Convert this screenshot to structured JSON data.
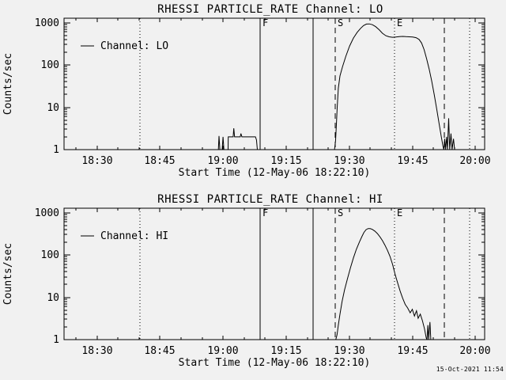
{
  "page": {
    "background": "#f1f1f1",
    "foreground": "#000000"
  },
  "footer": {
    "timestamp": "15-Oct-2021 11:54"
  },
  "chart_data": [
    {
      "id": "lo",
      "type": "line",
      "title": "RHESSI PARTICLE_RATE Channel: LO",
      "xlabel": "Start Time (12-May-06 18:22:10)",
      "ylabel": "Counts/sec",
      "legend": {
        "label": "Channel: LO",
        "position": "top-left"
      },
      "x_axis": {
        "unit": "minutes after 18:22:10",
        "range": [
          0,
          100
        ],
        "major_ticks": [
          {
            "t": 7.833,
            "label": "18:30"
          },
          {
            "t": 22.833,
            "label": "18:45"
          },
          {
            "t": 37.833,
            "label": "19:00"
          },
          {
            "t": 52.833,
            "label": "19:15"
          },
          {
            "t": 67.833,
            "label": "19:30"
          },
          {
            "t": 82.833,
            "label": "19:45"
          },
          {
            "t": 97.833,
            "label": "20:00"
          }
        ],
        "minor_ticks": [
          2.833,
          12.833,
          17.833,
          27.833,
          32.833,
          42.833,
          47.833,
          57.833,
          62.833,
          72.833,
          77.833,
          87.833,
          92.833
        ]
      },
      "y_axis": {
        "scale": "log",
        "range": [
          1,
          1270
        ],
        "major_ticks": [
          {
            "v": 1,
            "label": "1"
          },
          {
            "v": 10,
            "label": "10"
          },
          {
            "v": 100,
            "label": "100"
          },
          {
            "v": 1000,
            "label": "1000"
          }
        ],
        "minor_ticks": [
          2,
          3,
          4,
          5,
          6,
          7,
          8,
          9,
          20,
          30,
          40,
          50,
          60,
          70,
          80,
          90,
          200,
          300,
          400,
          500,
          600,
          700,
          800,
          900
        ]
      },
      "markers": [
        {
          "t": 18.0,
          "style": "dotted",
          "label": ""
        },
        {
          "t": 46.6,
          "style": "solid",
          "label": "F"
        },
        {
          "t": 59.2,
          "style": "solid",
          "label": ""
        },
        {
          "t": 64.4,
          "style": "dashed",
          "label": "S"
        },
        {
          "t": 78.6,
          "style": "dotted",
          "label": "E"
        },
        {
          "t": 90.4,
          "style": "dashed",
          "label": ""
        },
        {
          "t": 96.5,
          "style": "dotted",
          "label": ""
        }
      ],
      "series": [
        {
          "name": "Channel: LO",
          "points": [
            [
              0,
              1
            ],
            [
              36.5,
              1
            ],
            [
              36.7,
              1
            ],
            [
              36.85,
              2.1
            ],
            [
              37.05,
              1
            ],
            [
              37.6,
              1
            ],
            [
              37.8,
              2.0
            ],
            [
              38.0,
              1
            ],
            [
              39.0,
              1
            ],
            [
              39.05,
              2.0
            ],
            [
              40.2,
              2.0
            ],
            [
              40.35,
              3.2
            ],
            [
              40.55,
              2.0
            ],
            [
              41.9,
              2.0
            ],
            [
              42.05,
              2.4
            ],
            [
              42.3,
              2.0
            ],
            [
              45.5,
              2.0
            ],
            [
              45.75,
              1.7
            ],
            [
              45.95,
              1
            ],
            [
              64.3,
              1
            ],
            [
              64.55,
              1.6
            ],
            [
              64.75,
              4
            ],
            [
              64.95,
              10
            ],
            [
              65.2,
              28
            ],
            [
              65.6,
              55
            ],
            [
              66.2,
              90
            ],
            [
              67.0,
              160
            ],
            [
              67.9,
              280
            ],
            [
              68.8,
              430
            ],
            [
              69.7,
              590
            ],
            [
              70.5,
              730
            ],
            [
              71.2,
              850
            ],
            [
              71.9,
              920
            ],
            [
              72.6,
              930
            ],
            [
              73.3,
              890
            ],
            [
              74.1,
              800
            ],
            [
              74.9,
              680
            ],
            [
              75.7,
              560
            ],
            [
              76.5,
              490
            ],
            [
              77.3,
              460
            ],
            [
              78.1,
              450
            ],
            [
              78.9,
              455
            ],
            [
              79.7,
              465
            ],
            [
              80.5,
              470
            ],
            [
              81.3,
              465
            ],
            [
              82.1,
              460
            ],
            [
              82.9,
              455
            ],
            [
              83.7,
              440
            ],
            [
              84.4,
              400
            ],
            [
              85.0,
              330
            ],
            [
              85.6,
              230
            ],
            [
              86.2,
              140
            ],
            [
              86.8,
              80
            ],
            [
              87.4,
              42
            ],
            [
              88.0,
              20
            ],
            [
              88.6,
              9
            ],
            [
              89.2,
              4
            ],
            [
              89.7,
              2
            ],
            [
              90.1,
              1.2
            ],
            [
              90.3,
              1
            ],
            [
              90.5,
              1.8
            ],
            [
              90.7,
              1
            ],
            [
              90.95,
              2.0
            ],
            [
              91.15,
              1
            ],
            [
              91.45,
              5.5
            ],
            [
              91.7,
              1
            ],
            [
              92.0,
              2.4
            ],
            [
              92.25,
              1
            ],
            [
              92.6,
              1.8
            ],
            [
              92.85,
              1
            ],
            [
              93.3,
              1
            ],
            [
              99.8,
              1
            ]
          ]
        }
      ]
    },
    {
      "id": "hi",
      "type": "line",
      "title": "RHESSI PARTICLE_RATE Channel: HI",
      "xlabel": "Start Time (12-May-06 18:22:10)",
      "ylabel": "Counts/sec",
      "legend": {
        "label": "Channel: HI",
        "position": "top-left"
      },
      "x_axis": {
        "unit": "minutes after 18:22:10",
        "range": [
          0,
          100
        ],
        "major_ticks": [
          {
            "t": 7.833,
            "label": "18:30"
          },
          {
            "t": 22.833,
            "label": "18:45"
          },
          {
            "t": 37.833,
            "label": "19:00"
          },
          {
            "t": 52.833,
            "label": "19:15"
          },
          {
            "t": 67.833,
            "label": "19:30"
          },
          {
            "t": 82.833,
            "label": "19:45"
          },
          {
            "t": 97.833,
            "label": "20:00"
          }
        ],
        "minor_ticks": [
          2.833,
          12.833,
          17.833,
          27.833,
          32.833,
          42.833,
          47.833,
          57.833,
          62.833,
          72.833,
          77.833,
          87.833,
          92.833
        ]
      },
      "y_axis": {
        "scale": "log",
        "range": [
          1,
          1270
        ],
        "major_ticks": [
          {
            "v": 1,
            "label": "1"
          },
          {
            "v": 10,
            "label": "10"
          },
          {
            "v": 100,
            "label": "100"
          },
          {
            "v": 1000,
            "label": "1000"
          }
        ],
        "minor_ticks": [
          2,
          3,
          4,
          5,
          6,
          7,
          8,
          9,
          20,
          30,
          40,
          50,
          60,
          70,
          80,
          90,
          200,
          300,
          400,
          500,
          600,
          700,
          800,
          900
        ]
      },
      "markers": [
        {
          "t": 18.0,
          "style": "dotted",
          "label": ""
        },
        {
          "t": 46.6,
          "style": "solid",
          "label": "F"
        },
        {
          "t": 59.2,
          "style": "solid",
          "label": ""
        },
        {
          "t": 64.4,
          "style": "dashed",
          "label": "S"
        },
        {
          "t": 78.6,
          "style": "dotted",
          "label": "E"
        },
        {
          "t": 90.4,
          "style": "dashed",
          "label": ""
        },
        {
          "t": 96.5,
          "style": "dotted",
          "label": ""
        }
      ],
      "series": [
        {
          "name": "Channel: HI",
          "points": [
            [
              0,
              1
            ],
            [
              64.6,
              1
            ],
            [
              64.9,
              1.3
            ],
            [
              65.2,
              2.2
            ],
            [
              65.6,
              4
            ],
            [
              66.1,
              8
            ],
            [
              66.7,
              15
            ],
            [
              67.4,
              28
            ],
            [
              68.1,
              50
            ],
            [
              68.8,
              85
            ],
            [
              69.5,
              135
            ],
            [
              70.2,
              200
            ],
            [
              70.8,
              270
            ],
            [
              71.3,
              340
            ],
            [
              71.8,
              395
            ],
            [
              72.3,
              420
            ],
            [
              72.8,
              418
            ],
            [
              73.3,
              400
            ],
            [
              73.9,
              365
            ],
            [
              74.5,
              320
            ],
            [
              75.1,
              268
            ],
            [
              75.7,
              218
            ],
            [
              76.3,
              170
            ],
            [
              76.9,
              128
            ],
            [
              77.5,
              92
            ],
            [
              78.1,
              60
            ],
            [
              78.7,
              35
            ],
            [
              79.3,
              22
            ],
            [
              79.9,
              14
            ],
            [
              80.5,
              9.5
            ],
            [
              81.1,
              6.8
            ],
            [
              81.7,
              5.6
            ],
            [
              82.3,
              4.3
            ],
            [
              82.8,
              5.2
            ],
            [
              83.3,
              3.6
            ],
            [
              83.8,
              4.8
            ],
            [
              84.2,
              3.2
            ],
            [
              84.7,
              4.0
            ],
            [
              85.2,
              2.8
            ],
            [
              85.7,
              1.8
            ],
            [
              86.1,
              1.1
            ],
            [
              86.3,
              1
            ],
            [
              86.5,
              2.2
            ],
            [
              86.7,
              1
            ],
            [
              87.0,
              2.6
            ],
            [
              87.2,
              1
            ],
            [
              99.8,
              1
            ]
          ]
        }
      ]
    }
  ]
}
